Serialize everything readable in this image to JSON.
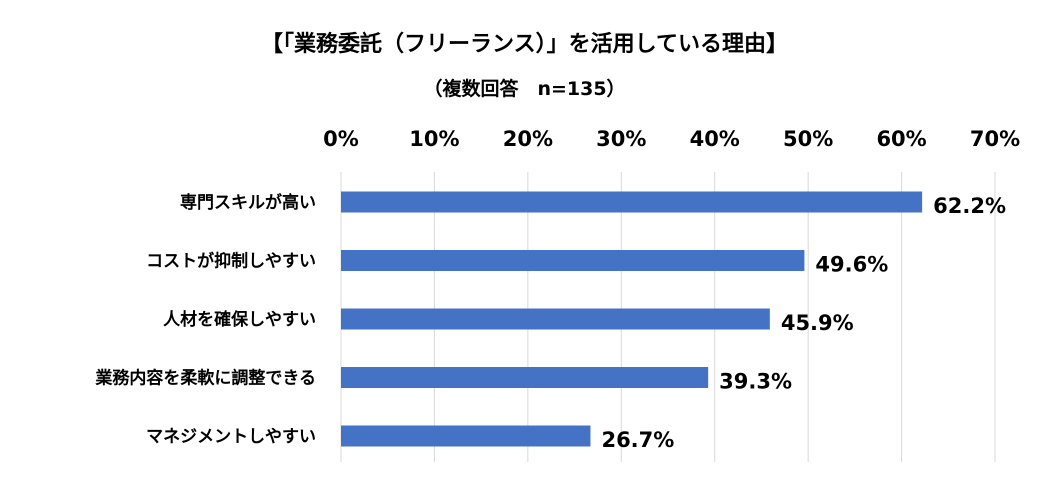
{
  "chart_data": {
    "type": "bar",
    "orientation": "horizontal",
    "title": "【「業務委託（フリーランス）」を活用している理由】",
    "subtitle": "（複数回答　n=135）",
    "categories": [
      "専門スキルが高い",
      "コストが抑制しやすい",
      "人材を確保しやすい",
      "業務内容を柔軟に調整できる",
      "マネジメントしやすい"
    ],
    "values": [
      62.2,
      49.6,
      45.9,
      39.3,
      26.7
    ],
    "data_labels": [
      "62.2%",
      "49.6%",
      "45.9%",
      "39.3%",
      "26.7%"
    ],
    "x_ticks": [
      "0%",
      "10%",
      "20%",
      "30%",
      "40%",
      "50%",
      "60%",
      "70%"
    ],
    "xlim": [
      0,
      70
    ],
    "axis_position": "top",
    "grid": true,
    "bar_color": "#4472C4",
    "gridline_color": "#D9D9D9"
  }
}
